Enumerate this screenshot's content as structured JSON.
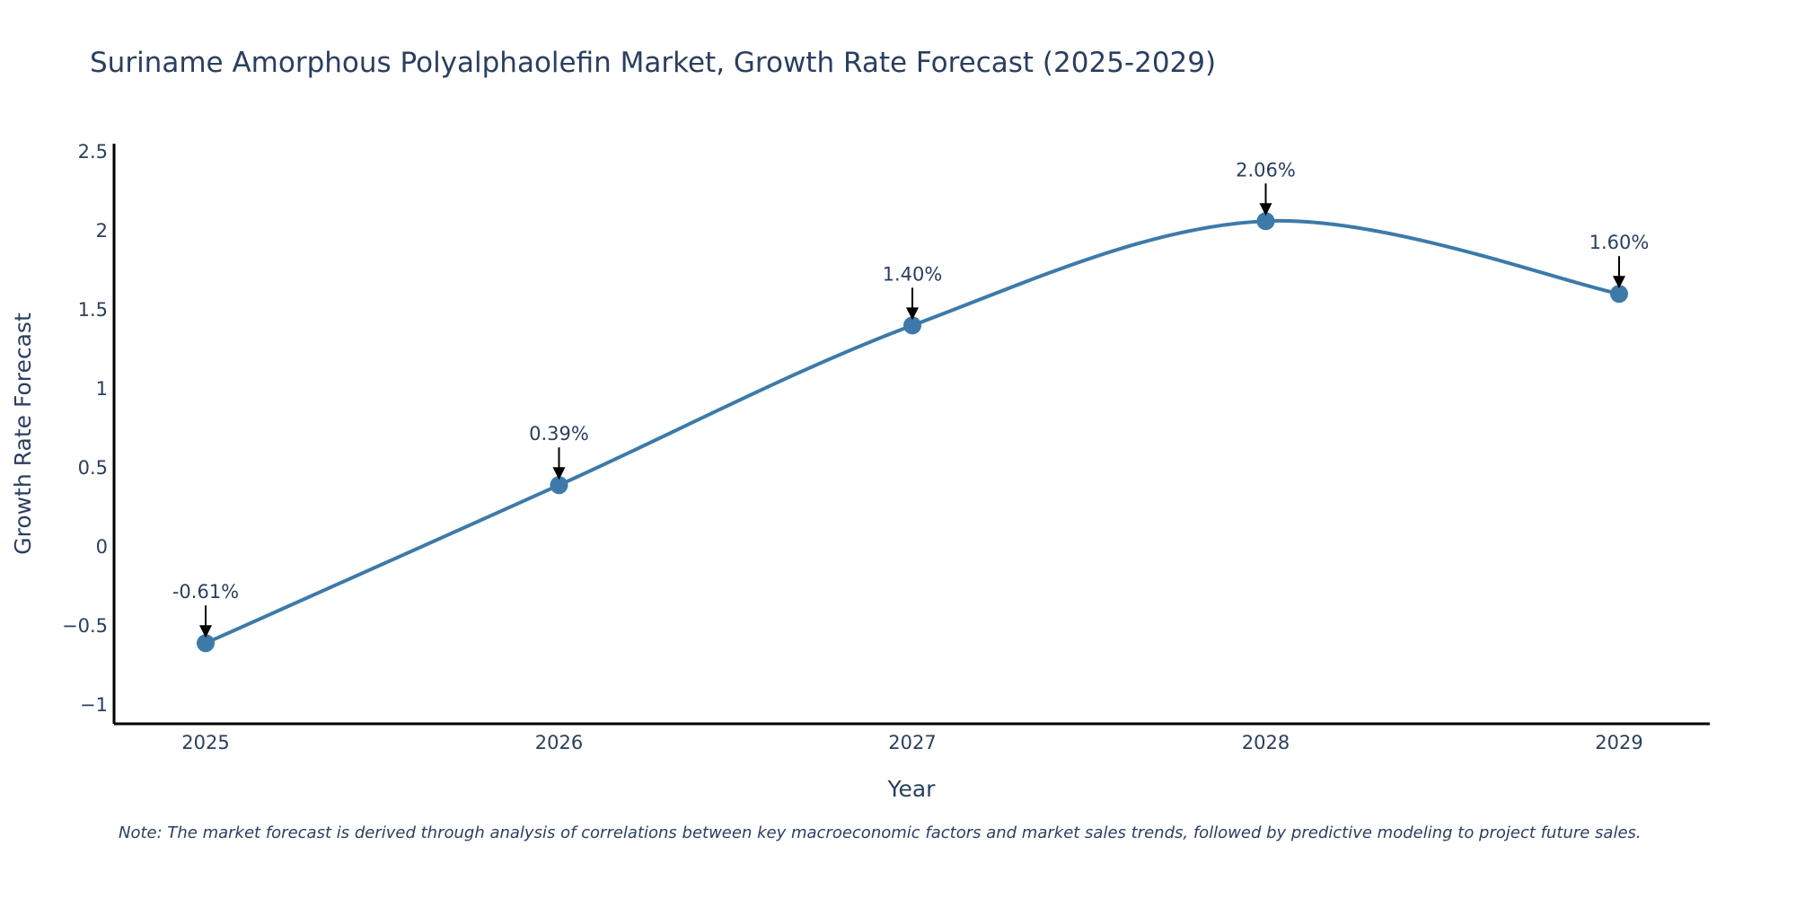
{
  "chart_data": {
    "type": "line",
    "title": "Suriname Amorphous Polyalphaolefin Market, Growth Rate Forecast (2025-2029)",
    "xlabel": "Year",
    "ylabel": "Growth Rate Forecast",
    "categories": [
      "2025",
      "2026",
      "2027",
      "2028",
      "2029"
    ],
    "values": [
      -0.61,
      0.39,
      1.4,
      2.06,
      1.6
    ],
    "data_labels": [
      "-0.61%",
      "0.39%",
      "1.40%",
      "2.06%",
      "1.60%"
    ],
    "ylim": [
      -1.12,
      2.55
    ],
    "yticks": [
      -1,
      -0.5,
      0,
      0.5,
      1,
      1.5,
      2,
      2.5
    ],
    "ytick_labels": [
      "−1",
      "−0.5",
      "0",
      "0.5",
      "1",
      "1.5",
      "2",
      "2.5"
    ],
    "grid": false,
    "line_color": "#3d7aa9",
    "marker_color": "#3d7aa9",
    "note": "Note: The market forecast is derived through analysis of correlations between key macroeconomic factors and market sales trends, followed by predictive modeling to project future sales."
  }
}
